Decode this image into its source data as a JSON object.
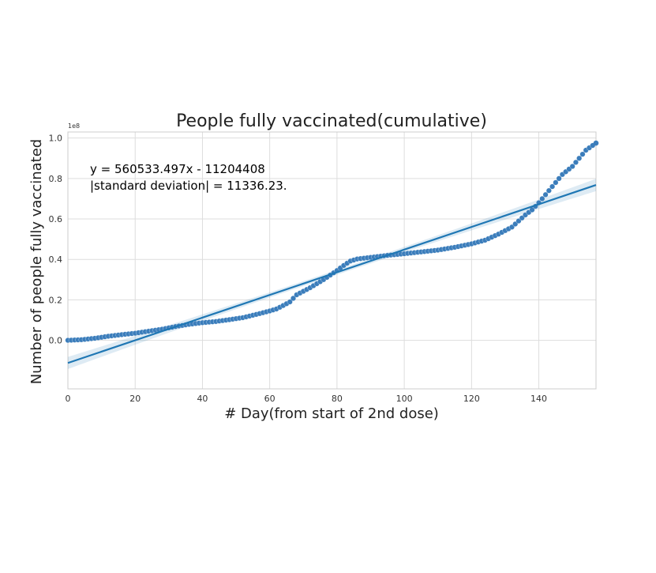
{
  "chart_data": {
    "type": "scatter",
    "title": "People fully vaccinated(cumulative)",
    "xlabel": "# Day(from start of 2nd dose)",
    "ylabel": "Number of people fully vaccinated",
    "y_offset_label": "1e8",
    "xlim": [
      0,
      157
    ],
    "ylim": [
      -0.24,
      1.03
    ],
    "x_ticks": [
      0,
      20,
      40,
      60,
      80,
      100,
      120,
      140
    ],
    "x_tick_labels": [
      "0",
      "20",
      "40",
      "60",
      "80",
      "100",
      "120",
      "140"
    ],
    "y_ticks": [
      0.0,
      0.2,
      0.4,
      0.6,
      0.8,
      1.0
    ],
    "y_tick_labels": [
      "0.0",
      "0.2",
      "0.4",
      "0.6",
      "0.8",
      "1.0"
    ],
    "grid": true,
    "annotation_lines": [
      "y = 560533.497x - 11204408",
      "|standard deviation| = 11336.23."
    ],
    "series": [
      {
        "kind": "scatter",
        "color": "#3b7dbb",
        "points": [
          [
            0,
            0.0
          ],
          [
            4,
            0.003
          ],
          [
            8,
            0.01
          ],
          [
            12,
            0.02
          ],
          [
            16,
            0.028
          ],
          [
            20,
            0.035
          ],
          [
            24,
            0.045
          ],
          [
            28,
            0.055
          ],
          [
            32,
            0.068
          ],
          [
            36,
            0.079
          ],
          [
            40,
            0.087
          ],
          [
            44,
            0.093
          ],
          [
            48,
            0.102
          ],
          [
            52,
            0.112
          ],
          [
            56,
            0.128
          ],
          [
            60,
            0.145
          ],
          [
            62,
            0.155
          ],
          [
            64,
            0.172
          ],
          [
            66,
            0.19
          ],
          [
            68,
            0.225
          ],
          [
            72,
            0.26
          ],
          [
            76,
            0.3
          ],
          [
            80,
            0.345
          ],
          [
            82,
            0.37
          ],
          [
            84,
            0.392
          ],
          [
            86,
            0.402
          ],
          [
            90,
            0.41
          ],
          [
            95,
            0.42
          ],
          [
            100,
            0.428
          ],
          [
            105,
            0.437
          ],
          [
            110,
            0.446
          ],
          [
            115,
            0.46
          ],
          [
            120,
            0.477
          ],
          [
            124,
            0.495
          ],
          [
            128,
            0.525
          ],
          [
            132,
            0.56
          ],
          [
            134,
            0.59
          ],
          [
            136,
            0.62
          ],
          [
            138,
            0.645
          ],
          [
            140,
            0.68
          ],
          [
            141,
            0.7
          ],
          [
            143,
            0.74
          ],
          [
            145,
            0.78
          ],
          [
            147,
            0.82
          ],
          [
            150,
            0.86
          ],
          [
            152,
            0.9
          ],
          [
            154,
            0.94
          ],
          [
            157,
            0.975
          ]
        ]
      },
      {
        "kind": "regression",
        "color": "#1f77b4",
        "slope_per_day": 0.00560533497,
        "intercept": -0.11204408
      }
    ]
  }
}
